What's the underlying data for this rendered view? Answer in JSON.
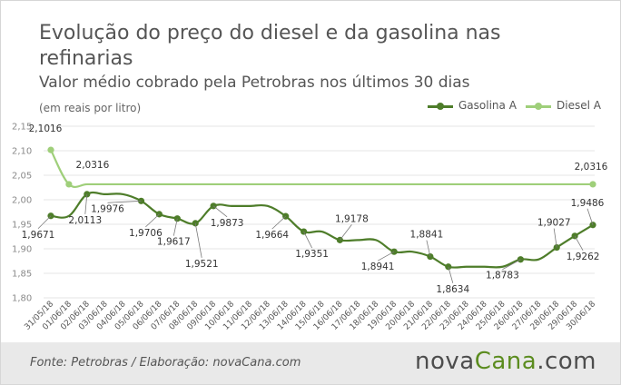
{
  "title": "Evolução do preço do diesel e da gasolina nas refinarias",
  "subtitle": "Valor médio cobrado pela Petrobras nos últimos 30 dias",
  "unit_note": "(em reais por litro)",
  "footer": {
    "source": "Fonte: Petrobras / Elaboração: novaCana.com",
    "brand_part1": "nova",
    "brand_part2": "Cana",
    "brand_part3": ".com"
  },
  "colors": {
    "gasolina": "#4e7d2a",
    "diesel": "#9fcf7a",
    "grid": "#e5e5e5",
    "brand_accent": "#5b8c1f"
  },
  "chart_data": {
    "type": "line",
    "ylim": [
      1.8,
      2.15
    ],
    "yticks": [
      "1,80",
      "1,85",
      "1,90",
      "1,95",
      "2,00",
      "2,05",
      "2,10",
      "2,15"
    ],
    "grid": true,
    "legend_position": "top-right",
    "x": [
      "31/05/18",
      "01/06/18",
      "02/06/18",
      "03/06/18",
      "04/06/18",
      "05/06/18",
      "06/06/18",
      "07/06/18",
      "08/06/18",
      "09/06/18",
      "10/06/18",
      "11/06/18",
      "12/06/18",
      "13/06/18",
      "14/06/18",
      "15/06/18",
      "16/06/18",
      "17/06/18",
      "18/06/18",
      "19/06/18",
      "20/06/18",
      "21/06/18",
      "22/06/18",
      "23/06/18",
      "24/06/18",
      "25/06/18",
      "26/06/18",
      "27/06/18",
      "28/06/18",
      "29/06/18",
      "30/06/18"
    ],
    "series": [
      {
        "name": "Gasolina A",
        "values": [
          1.9671,
          1.9671,
          2.0113,
          2.0113,
          2.0113,
          1.9976,
          1.9706,
          1.9617,
          1.9521,
          1.9873,
          1.9873,
          1.9873,
          1.9873,
          1.9664,
          1.9351,
          1.9351,
          1.9178,
          1.9178,
          1.9178,
          1.8941,
          1.8941,
          1.8841,
          1.8634,
          1.8634,
          1.8634,
          1.8634,
          1.8783,
          1.8783,
          1.9027,
          1.9262,
          1.9486
        ],
        "markers": [
          0,
          2,
          5,
          6,
          7,
          8,
          9,
          13,
          14,
          16,
          19,
          21,
          22,
          26,
          28,
          29,
          30
        ]
      },
      {
        "name": "Diesel A",
        "values": [
          2.1016,
          2.0316,
          2.0316,
          2.0316,
          2.0316,
          2.0316,
          2.0316,
          2.0316,
          2.0316,
          2.0316,
          2.0316,
          2.0316,
          2.0316,
          2.0316,
          2.0316,
          2.0316,
          2.0316,
          2.0316,
          2.0316,
          2.0316,
          2.0316,
          2.0316,
          2.0316,
          2.0316,
          2.0316,
          2.0316,
          2.0316,
          2.0316,
          2.0316,
          2.0316,
          2.0316
        ],
        "markers": [
          0,
          1,
          30
        ]
      }
    ],
    "annotations": [
      {
        "series": 1,
        "index": 0,
        "text": "2,1016"
      },
      {
        "series": 1,
        "index": 1,
        "text": "2,0316"
      },
      {
        "series": 1,
        "index": 30,
        "text": "2,0316"
      },
      {
        "series": 0,
        "index": 0,
        "text": "1,9671"
      },
      {
        "series": 0,
        "index": 2,
        "text": "2,0113"
      },
      {
        "series": 0,
        "index": 5,
        "text": "1,9976"
      },
      {
        "series": 0,
        "index": 6,
        "text": "1,9706"
      },
      {
        "series": 0,
        "index": 7,
        "text": "1,9617"
      },
      {
        "series": 0,
        "index": 8,
        "text": "1,9521"
      },
      {
        "series": 0,
        "index": 9,
        "text": "1,9873"
      },
      {
        "series": 0,
        "index": 13,
        "text": "1,9664"
      },
      {
        "series": 0,
        "index": 14,
        "text": "1,9351"
      },
      {
        "series": 0,
        "index": 16,
        "text": "1,9178"
      },
      {
        "series": 0,
        "index": 19,
        "text": "1,8941"
      },
      {
        "series": 0,
        "index": 21,
        "text": "1,8841"
      },
      {
        "series": 0,
        "index": 22,
        "text": "1,8634"
      },
      {
        "series": 0,
        "index": 26,
        "text": "1,8783"
      },
      {
        "series": 0,
        "index": 28,
        "text": "1,9027"
      },
      {
        "series": 0,
        "index": 29,
        "text": "1,9262"
      },
      {
        "series": 0,
        "index": 30,
        "text": "1,9486"
      }
    ]
  }
}
